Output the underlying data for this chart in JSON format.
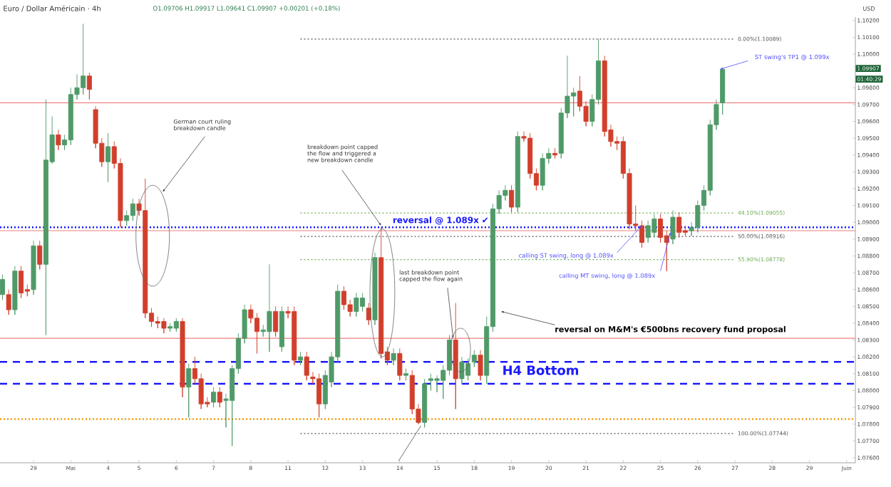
{
  "chart_data": {
    "type": "candlestick",
    "title": "Euro / Dollar Américain · 4h",
    "subtitle": "O1.09706 H1.09917 L1.09641 C1.09907 +0.00201 (+0.18%)",
    "ylabel": "USD",
    "categories": [
      null,
      null,
      null,
      null,
      null,
      "29",
      null,
      null,
      null,
      null,
      null,
      "Mai",
      null,
      null,
      null,
      null,
      null,
      "4",
      null,
      null,
      null,
      null,
      "5",
      null,
      null,
      null,
      null,
      null,
      "6",
      null,
      null,
      null,
      null,
      null,
      "7",
      null,
      null,
      null,
      null,
      null,
      "8",
      null,
      null,
      null,
      null,
      null,
      "11",
      null,
      null,
      null,
      null,
      null,
      "12",
      null,
      null,
      null,
      null,
      null,
      "13",
      null,
      null,
      null,
      null,
      null,
      "14",
      null,
      null,
      null,
      null,
      null,
      "15",
      null,
      null,
      null,
      null,
      null,
      "18",
      null,
      null,
      null,
      null,
      null,
      "19",
      null,
      null,
      null,
      null,
      null,
      "20",
      null,
      null,
      null,
      null,
      null,
      "21",
      null,
      null,
      null,
      null,
      null,
      "22",
      null,
      null,
      null,
      null,
      null,
      "25",
      null,
      null,
      null,
      null,
      null,
      "26",
      null,
      null,
      null,
      null,
      null,
      "27",
      null,
      null,
      null,
      null,
      null,
      "28",
      null,
      null,
      null,
      null,
      null,
      "29",
      null,
      null,
      null,
      null,
      null,
      "Juin",
      null
    ],
    "ohlc": [
      [
        1.0857,
        1.0869,
        1.0854,
        1.0866
      ],
      [
        1.0857,
        1.086,
        1.0845,
        1.0848
      ],
      [
        1.0848,
        1.0874,
        1.0845,
        1.0871
      ],
      [
        1.0871,
        1.0874,
        1.0855,
        1.0858
      ],
      [
        1.086,
        1.0863,
        1.0856,
        1.0859
      ],
      [
        1.086,
        1.0889,
        1.0857,
        1.0886
      ],
      [
        1.0886,
        1.0889,
        1.0872,
        1.0875
      ],
      [
        1.0875,
        1.0973,
        1.0833,
        1.0937
      ],
      [
        1.0936,
        1.0963,
        1.0935,
        1.0952
      ],
      [
        1.0952,
        1.0955,
        1.0943,
        1.0946
      ],
      [
        1.0946,
        1.0952,
        1.0943,
        1.0949
      ],
      [
        1.0949,
        1.098,
        1.0946,
        1.0976
      ],
      [
        1.0976,
        1.0988,
        1.0973,
        1.098
      ],
      [
        1.098,
        1.1018,
        1.0976,
        1.0987
      ],
      [
        1.0987,
        1.0989,
        1.0973,
        1.0979
      ],
      [
        1.0967,
        1.0969,
        1.0944,
        1.0947
      ],
      [
        1.0947,
        1.095,
        1.0933,
        1.0936
      ],
      [
        1.0936,
        1.0953,
        1.0924,
        1.0945
      ],
      [
        1.0945,
        1.0948,
        1.0932,
        1.0935
      ],
      [
        1.0935,
        1.0938,
        1.0897,
        1.0901
      ],
      [
        1.0901,
        1.0907,
        1.0898,
        1.0904
      ],
      [
        1.0904,
        1.0914,
        1.0901,
        1.0911
      ],
      [
        1.0911,
        1.0914,
        1.0904,
        1.0907
      ],
      [
        1.0907,
        1.0926,
        1.0843,
        1.0846
      ],
      [
        1.0846,
        1.0849,
        1.0838,
        1.0841
      ],
      [
        1.0841,
        1.0844,
        1.0837,
        1.084
      ],
      [
        1.0841,
        1.0843,
        1.0834,
        1.0837
      ],
      [
        1.0837,
        1.084,
        1.0835,
        1.0838
      ],
      [
        1.0837,
        1.0843,
        1.0835,
        1.0841
      ],
      [
        1.0841,
        1.0843,
        1.0796,
        1.0802
      ],
      [
        1.0802,
        1.0816,
        1.0784,
        1.0813
      ],
      [
        1.0813,
        1.082,
        1.0804,
        1.0807
      ],
      [
        1.0807,
        1.081,
        1.0789,
        1.0792
      ],
      [
        1.0793,
        1.0796,
        1.079,
        1.0792
      ],
      [
        1.0793,
        1.0802,
        1.079,
        1.0799
      ],
      [
        1.0799,
        1.0802,
        1.079,
        1.0793
      ],
      [
        1.0794,
        1.0798,
        1.0778,
        1.0795
      ],
      [
        1.0794,
        1.0815,
        1.0767,
        1.0813
      ],
      [
        1.0813,
        1.0834,
        1.081,
        1.0831
      ],
      [
        1.0831,
        1.0851,
        1.0828,
        1.0848
      ],
      [
        1.0848,
        1.0851,
        1.084,
        1.0843
      ],
      [
        1.0843,
        1.0846,
        1.0822,
        1.0835
      ],
      [
        1.0835,
        1.0839,
        1.0832,
        1.0836
      ],
      [
        1.0835,
        1.0875,
        1.0823,
        1.0847
      ],
      [
        1.0847,
        1.085,
        1.0832,
        1.0835
      ],
      [
        1.0826,
        1.085,
        1.0823,
        1.0847
      ],
      [
        1.0847,
        1.085,
        1.0843,
        1.0846
      ],
      [
        1.0847,
        1.085,
        1.0815,
        1.0818
      ],
      [
        1.0818,
        1.0823,
        1.0815,
        1.082
      ],
      [
        1.082,
        1.0823,
        1.0806,
        1.0809
      ],
      [
        1.0808,
        1.0811,
        1.0804,
        1.0807
      ],
      [
        1.0807,
        1.081,
        1.0784,
        1.0792
      ],
      [
        1.0792,
        1.0812,
        1.0789,
        1.0809
      ],
      [
        1.0805,
        1.0823,
        1.0802,
        1.082
      ],
      [
        1.082,
        1.0863,
        1.0817,
        1.0859
      ],
      [
        1.0859,
        1.0862,
        1.0848,
        1.0851
      ],
      [
        1.0851,
        1.0854,
        1.0844,
        1.0847
      ],
      [
        1.0847,
        1.0858,
        1.0844,
        1.0855
      ],
      [
        1.085,
        1.0858,
        1.0847,
        1.0855
      ],
      [
        1.0849,
        1.0852,
        1.0839,
        1.0842
      ],
      [
        1.0842,
        1.0882,
        1.0839,
        1.0879
      ],
      [
        1.0879,
        1.0897,
        1.0819,
        1.0822
      ],
      [
        1.0823,
        1.0826,
        1.0815,
        1.0818
      ],
      [
        1.0818,
        1.0825,
        1.0815,
        1.0822
      ],
      [
        1.0822,
        1.0825,
        1.0806,
        1.0809
      ],
      [
        1.0809,
        1.0813,
        1.0806,
        1.081
      ],
      [
        1.0809,
        1.0812,
        1.0786,
        1.0789
      ],
      [
        1.0789,
        1.0792,
        1.078,
        1.0781
      ],
      [
        1.0781,
        1.0807,
        1.0778,
        1.0804
      ],
      [
        1.0806,
        1.081,
        1.08,
        1.0807
      ],
      [
        1.0806,
        1.0809,
        1.0799,
        1.0807
      ],
      [
        1.0806,
        1.0815,
        1.0795,
        1.0812
      ],
      [
        1.0812,
        1.0833,
        1.0809,
        1.083
      ],
      [
        1.083,
        1.0852,
        1.0789,
        1.0807
      ],
      [
        1.0807,
        1.082,
        1.0804,
        1.0817
      ],
      [
        1.0809,
        1.0819,
        1.0806,
        1.0816
      ],
      [
        1.0817,
        1.0824,
        1.0814,
        1.0821
      ],
      [
        1.0821,
        1.0824,
        1.0806,
        1.0809
      ],
      [
        1.0809,
        1.0844,
        1.0804,
        1.0838
      ],
      [
        1.0838,
        1.0911,
        1.0835,
        1.0908
      ],
      [
        1.0908,
        1.0919,
        1.0905,
        1.0916
      ],
      [
        1.0916,
        1.0922,
        1.0913,
        1.0919
      ],
      [
        1.0919,
        1.0922,
        1.0906,
        1.0909
      ],
      [
        1.0909,
        1.0954,
        1.0906,
        1.0951
      ],
      [
        1.0951,
        1.0954,
        1.0948,
        1.095
      ],
      [
        1.095,
        1.0953,
        1.0926,
        1.0929
      ],
      [
        1.0929,
        1.0932,
        1.0919,
        1.0922
      ],
      [
        1.0922,
        1.0941,
        1.0919,
        1.0938
      ],
      [
        1.0938,
        1.0944,
        1.0935,
        1.0941
      ],
      [
        1.0941,
        1.0944,
        1.0938,
        1.094
      ],
      [
        1.0941,
        1.0968,
        1.0938,
        1.0965
      ],
      [
        1.0965,
        1.0999,
        1.0962,
        1.0975
      ],
      [
        1.0975,
        1.098,
        1.0963,
        1.0977
      ],
      [
        1.0978,
        1.0987,
        1.0966,
        1.0969
      ],
      [
        1.0969,
        1.0972,
        1.0957,
        1.096
      ],
      [
        1.096,
        1.0976,
        1.0957,
        1.0973
      ],
      [
        1.0973,
        1.1009,
        1.097,
        1.0996
      ],
      [
        1.0996,
        1.0999,
        1.0951,
        1.0954
      ],
      [
        1.0955,
        1.0958,
        1.0945,
        1.0948
      ],
      [
        1.0948,
        1.0951,
        1.0943,
        1.0947
      ],
      [
        1.0948,
        1.0951,
        1.0926,
        1.0929
      ],
      [
        1.0929,
        1.0932,
        1.0896,
        1.0899
      ],
      [
        1.0899,
        1.091,
        1.0895,
        1.0898
      ],
      [
        1.0898,
        1.0901,
        1.0885,
        1.0888
      ],
      [
        1.0891,
        1.0901,
        1.0888,
        1.0898
      ],
      [
        1.0894,
        1.0905,
        1.0891,
        1.0902
      ],
      [
        1.0902,
        1.0905,
        1.0888,
        1.0891
      ],
      [
        1.0892,
        1.0895,
        1.0871,
        1.0888
      ],
      [
        1.089,
        1.0907,
        1.0887,
        1.0903
      ],
      [
        1.0903,
        1.0906,
        1.0891,
        1.0894
      ],
      [
        1.0895,
        1.0898,
        1.0892,
        1.0894
      ],
      [
        1.0895,
        1.09,
        1.0892,
        1.0897
      ],
      [
        1.0897,
        1.0913,
        1.0894,
        1.091
      ],
      [
        1.091,
        1.0922,
        1.0907,
        1.0919
      ],
      [
        1.0919,
        1.0961,
        1.0916,
        1.0958
      ],
      [
        1.0958,
        1.0973,
        1.0955,
        1.097
      ],
      [
        1.0971,
        1.0992,
        1.0964,
        1.0991
      ],
      null,
      null,
      null,
      null,
      null,
      null,
      null,
      null,
      null,
      null,
      null,
      null,
      null,
      null,
      null,
      null,
      null,
      null,
      null,
      null,
      null
    ],
    "ylim": [
      1.0757,
      1.1022
    ],
    "yticks": [
      {
        "value": 1.076,
        "label": "1.07600"
      },
      {
        "value": 1.077,
        "label": "1.07700"
      },
      {
        "value": 1.078,
        "label": "1.07800"
      },
      {
        "value": 1.079,
        "label": "1.07900"
      },
      {
        "value": 1.08,
        "label": "1.08000"
      },
      {
        "value": 1.081,
        "label": "1.08100"
      },
      {
        "value": 1.082,
        "label": "1.08200"
      },
      {
        "value": 1.083,
        "label": "1.08300"
      },
      {
        "value": 1.084,
        "label": "1.08400"
      },
      {
        "value": 1.085,
        "label": "1.08500"
      },
      {
        "value": 1.086,
        "label": "1.08600"
      },
      {
        "value": 1.087,
        "label": "1.08700"
      },
      {
        "value": 1.088,
        "label": "1.08800"
      },
      {
        "value": 1.089,
        "label": "1.08900"
      },
      {
        "value": 1.09,
        "label": "1.09000"
      },
      {
        "value": 1.091,
        "label": "1.09100"
      },
      {
        "value": 1.092,
        "label": "1.09200"
      },
      {
        "value": 1.093,
        "label": "1.09300"
      },
      {
        "value": 1.094,
        "label": "1.09400"
      },
      {
        "value": 1.095,
        "label": "1.09500"
      },
      {
        "value": 1.096,
        "label": "1.09600"
      },
      {
        "value": 1.097,
        "label": "1.09700"
      },
      {
        "value": 1.098,
        "label": "1.09800"
      },
      {
        "value": 1.1,
        "label": "1.10000"
      },
      {
        "value": 1.101,
        "label": "1.10100"
      },
      {
        "value": 1.102,
        "label": "1.10200"
      }
    ],
    "ref_lines": [
      {
        "axis": "y",
        "value": 1.10089,
        "label": "0.00%(1.10089)",
        "color": "#555555",
        "line_style": "dotted"
      },
      {
        "axis": "y",
        "value": 1.09055,
        "label": "44.10%(1.09055)",
        "color": "#6aa84f",
        "line_style": "dotted"
      },
      {
        "axis": "y",
        "value": 1.08916,
        "label": "50.00%(1.08916)",
        "color": "#555555",
        "line_style": "dotted"
      },
      {
        "axis": "y",
        "value": 1.08778,
        "label": "55.90%(1.08778)",
        "color": "#6aa84f",
        "line_style": "dotted"
      },
      {
        "axis": "y",
        "value": 1.07744,
        "label": "100.00%(1.07744)",
        "color": "#555555",
        "line_style": "dotted"
      },
      {
        "axis": "y",
        "value": 1.0971,
        "color": "#f08080",
        "line_style": "solid"
      },
      {
        "axis": "y",
        "value": 1.0895,
        "color": "#f08080",
        "line_style": "solid"
      },
      {
        "axis": "y",
        "value": 1.0831,
        "color": "#f08080",
        "line_style": "solid"
      },
      {
        "axis": "y",
        "value": 1.0897,
        "color": "#1a1aff",
        "line_style": "dotted"
      },
      {
        "axis": "y",
        "value": 1.0817,
        "color": "#1a1aff",
        "line_style": "dashed"
      },
      {
        "axis": "y",
        "value": 1.0804,
        "color": "#1a1aff",
        "line_style": "dashed"
      },
      {
        "axis": "y",
        "value": 1.0783,
        "color": "#f5a623",
        "line_style": "dotted"
      }
    ],
    "annotations": [
      "German court ruling breakdown candle",
      "breakdown point capped the flow and triggered a new breakdown candle",
      "**reversal @ 1.089x** ✔",
      "last breakdown point capped the flow again",
      "calling ST swing, long @ 1.089x",
      "calling MT swing, long @ 1.089x",
      "reversal on M&M's €500bns recovery fund proposal",
      "ST swing's TP1 @ 1.099x",
      "H4 Bottom",
      "1.09907",
      "01:40:29"
    ]
  }
}
